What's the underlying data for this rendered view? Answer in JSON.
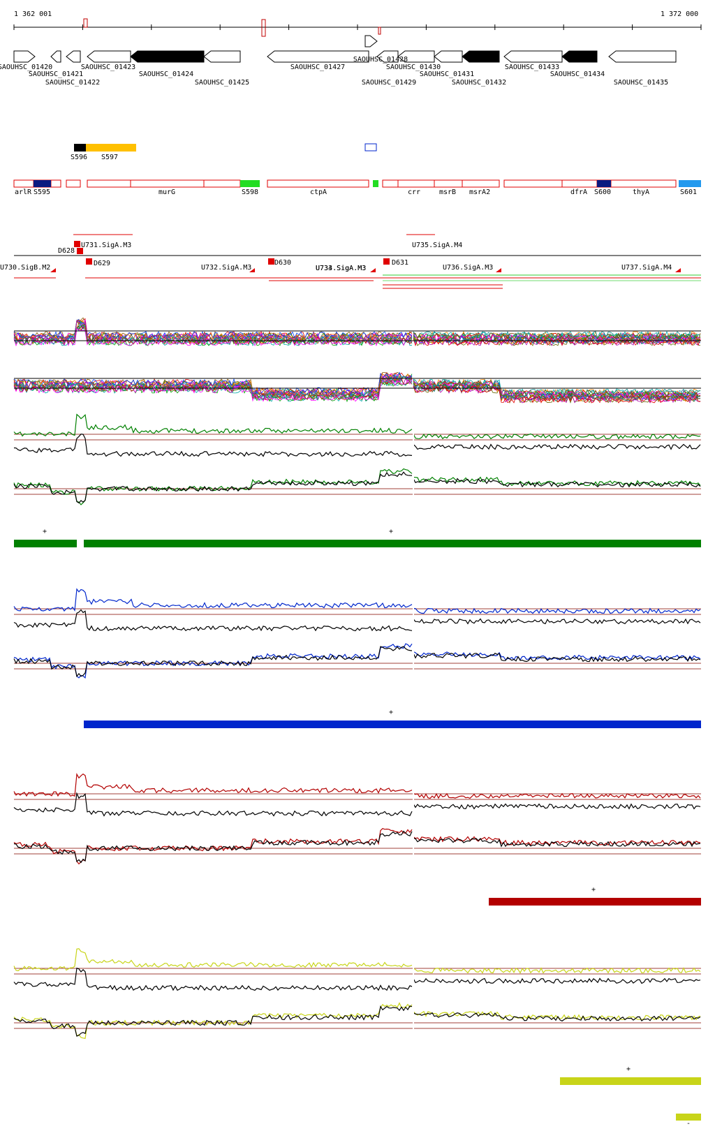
{
  "coordinates": {
    "start": "1 362 001",
    "end": "1 372 000"
  },
  "colors": {
    "green": "#008000",
    "blue": "#0026cc",
    "red": "#b30000",
    "yellow": "#c8d419",
    "feature_red": "#e00000",
    "ref_line": "#a0403a"
  },
  "gene_labels": [
    "SAOUHSC_01420",
    "SAOUHSC_01421",
    "SAOUHSC_01422",
    "SAOUHSC_01423",
    "SAOUHSC_01424",
    "SAOUHSC_01425",
    "SAOUHSC_01427",
    "SAOUHSC_01428",
    "SAOUHSC_01429",
    "SAOUHSC_01430",
    "SAOUHSC_01431",
    "SAOUHSC_01432",
    "SAOUHSC_01433",
    "SAOUHSC_01434",
    "SAOUHSC_01435"
  ],
  "segment_labels": [
    "S596",
    "S597"
  ],
  "operon_labels": [
    "arlR",
    "S595",
    "murG",
    "S598",
    "ctpA",
    "crr",
    "msrB",
    "msrA2",
    "dfrA",
    "S600",
    "thyA",
    "S601"
  ],
  "site_labels": [
    "U730.SigB.M2",
    "D628",
    "U731.SigA.M3",
    "D629",
    "U732.SigA.M3",
    "D630",
    "U733.SigA.M3",
    "U734.SigA.M3",
    "D631",
    "U735.SigA.M4",
    "U736.SigA.M3",
    "U737.SigA.M4"
  ],
  "strand_marks": [
    "+",
    "+",
    "+",
    "+",
    "+",
    "-"
  ]
}
